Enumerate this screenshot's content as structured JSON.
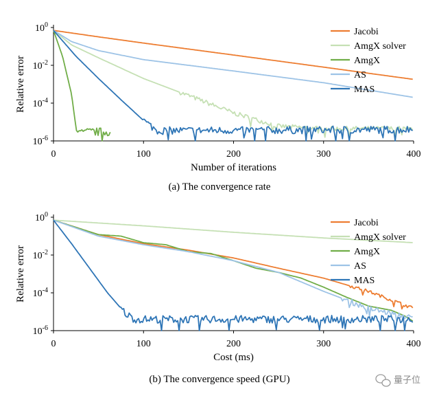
{
  "watermark": {
    "text": "量子位"
  },
  "chart_data": [
    {
      "type": "line",
      "caption": "(a)  The convergence rate",
      "xlabel": "Number of iterations",
      "ylabel": "Relative error",
      "xlim": [
        0,
        400
      ],
      "ylim": [
        1e-06,
        1
      ],
      "yscale": "log",
      "xticks": [
        "0",
        "100",
        "200",
        "300",
        "400"
      ],
      "yticks": [
        {
          "base": "10",
          "exp": "0",
          "value": 1
        },
        {
          "base": "10",
          "exp": "-2",
          "value": 0.01
        },
        {
          "base": "10",
          "exp": "-4",
          "value": 0.0001
        },
        {
          "base": "10",
          "exp": "-6",
          "value": 1e-06
        }
      ],
      "grid": false,
      "legend_position": "top-right",
      "series": [
        {
          "name": "Jacobi",
          "color": "#ED7D31",
          "noise": 0,
          "x": [
            0,
            50,
            100,
            200,
            300,
            400
          ],
          "y": [
            0.7,
            0.32,
            0.15,
            0.035,
            0.008,
            0.0018
          ]
        },
        {
          "name": "AmgX solver",
          "color": "#C5E0B4",
          "noise": 0.12,
          "noise_from": 140,
          "x": [
            0,
            20,
            50,
            100,
            150,
            200,
            250,
            300,
            400
          ],
          "y": [
            0.7,
            0.12,
            0.025,
            0.002,
            0.00025,
            3e-05,
            6e-06,
            4.5e-06,
            4.5e-06
          ]
        },
        {
          "name": "AmgX",
          "color": "#70AD47",
          "noise": 0.22,
          "noise_from": 25,
          "x": [
            0,
            10,
            20,
            25,
            30,
            40,
            63
          ],
          "y": [
            0.7,
            0.03,
            0.0003,
            5e-06,
            2.5e-06,
            3e-06,
            3e-06
          ]
        },
        {
          "name": "AS",
          "color": "#9DC3E6",
          "noise": 0,
          "x": [
            0,
            20,
            50,
            100,
            200,
            300,
            400
          ],
          "y": [
            0.7,
            0.18,
            0.06,
            0.02,
            0.005,
            0.0012,
            0.0002
          ]
        },
        {
          "name": "MAS",
          "color": "#2E75B6",
          "noise": 0.2,
          "noise_from": 100,
          "x": [
            0,
            25,
            50,
            75,
            100,
            115,
            400
          ],
          "y": [
            0.7,
            0.03,
            0.002,
            0.00015,
            1.2e-05,
            3.5e-06,
            4e-06
          ]
        }
      ]
    },
    {
      "type": "line",
      "caption": "(b)  The convergence speed (GPU)",
      "xlabel": "Cost (ms)",
      "ylabel": "Relative error",
      "xlim": [
        0,
        400
      ],
      "ylim": [
        1e-06,
        1
      ],
      "yscale": "log",
      "xticks": [
        "0",
        "100",
        "200",
        "300",
        "400"
      ],
      "yticks": [
        {
          "base": "10",
          "exp": "0",
          "value": 1
        },
        {
          "base": "10",
          "exp": "-2",
          "value": 0.01
        },
        {
          "base": "10",
          "exp": "-4",
          "value": 0.0001
        },
        {
          "base": "10",
          "exp": "-6",
          "value": 1e-06
        }
      ],
      "grid": false,
      "legend_position": "top-right",
      "series": [
        {
          "name": "Jacobi",
          "color": "#ED7D31",
          "noise": 0.08,
          "noise_from": 330,
          "x": [
            0,
            50,
            100,
            150,
            200,
            250,
            300,
            350,
            400
          ],
          "y": [
            0.7,
            0.12,
            0.04,
            0.018,
            0.007,
            0.002,
            0.0006,
            0.00012,
            1.5e-05
          ]
        },
        {
          "name": "AmgX solver",
          "color": "#C5E0B4",
          "noise": 0,
          "x": [
            0,
            100,
            200,
            300,
            400
          ],
          "y": [
            0.7,
            0.35,
            0.16,
            0.08,
            0.045
          ]
        },
        {
          "name": "AmgX",
          "color": "#70AD47",
          "noise": 0,
          "x": [
            0,
            50,
            75,
            100,
            125,
            150,
            175,
            200,
            225,
            250,
            275,
            300,
            325,
            350,
            375,
            390,
            400
          ],
          "y": [
            0.7,
            0.12,
            0.1,
            0.045,
            0.035,
            0.015,
            0.012,
            0.005,
            0.002,
            0.0012,
            0.0006,
            0.0002,
            6e-05,
            2e-05,
            1.2e-05,
            6e-06,
            3e-06
          ]
        },
        {
          "name": "AS",
          "color": "#9DC3E6",
          "noise": 0.15,
          "noise_from": 320,
          "x": [
            0,
            50,
            100,
            150,
            200,
            250,
            300,
            350,
            400
          ],
          "y": [
            0.7,
            0.1,
            0.035,
            0.015,
            0.005,
            0.0012,
            0.00012,
            1.5e-05,
            4.5e-06
          ]
        },
        {
          "name": "MAS",
          "color": "#2E75B6",
          "noise": 0.2,
          "noise_from": 75,
          "x": [
            0,
            20,
            40,
            60,
            80,
            90,
            400
          ],
          "y": [
            0.7,
            0.04,
            0.002,
            0.0001,
            8e-06,
            4e-06,
            4e-06
          ]
        }
      ]
    }
  ]
}
